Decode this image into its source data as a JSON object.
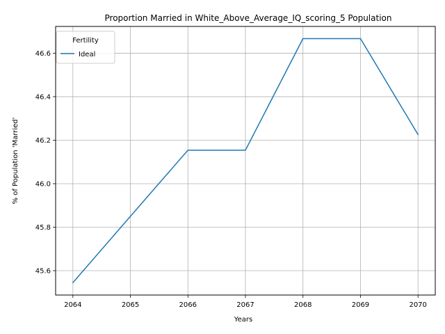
{
  "chart_data": {
    "type": "line",
    "title": "Proportion Married in White_Above_Average_IQ_scoring_5 Population",
    "xlabel": "Years",
    "ylabel": "% of Population 'Married'",
    "x": [
      2064,
      2065,
      2066,
      2067,
      2068,
      2069,
      2070
    ],
    "x_ticks": [
      "2064",
      "2065",
      "2066",
      "2067",
      "2068",
      "2069",
      "2070"
    ],
    "y_ticks": [
      "45.6",
      "45.8",
      "46.0",
      "46.2",
      "46.4",
      "46.6"
    ],
    "xlim": [
      2063.7,
      2070.3
    ],
    "ylim": [
      45.488,
      46.723
    ],
    "grid": true,
    "legend": {
      "title": "Fertility",
      "placement": "top-left"
    },
    "series": [
      {
        "name": "Ideal",
        "color": "#1f77b4",
        "values": [
          45.545,
          45.85,
          46.154,
          46.154,
          46.667,
          46.667,
          46.226
        ]
      }
    ]
  }
}
